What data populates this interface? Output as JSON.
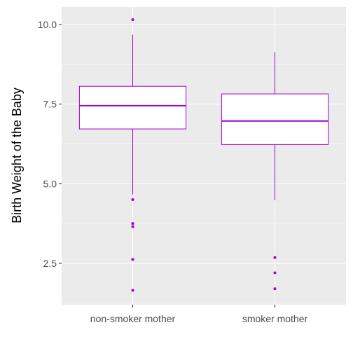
{
  "chart_data": {
    "type": "boxplot",
    "title": "",
    "xlabel": "",
    "ylabel": "Birth Weight of the Baby",
    "ylim": [
      1.2,
      10.55
    ],
    "y_ticks": [
      2.5,
      5.0,
      7.5,
      10.0
    ],
    "y_tick_labels": [
      "2.5",
      "5.0",
      "7.5",
      "10.0"
    ],
    "grid": true,
    "legend": "none",
    "colors": {
      "panel_background": "#EBEBEB",
      "grid": "#FFFFFF",
      "box_outline": "#9F00CF",
      "box_fill": "#FFFFFF",
      "tick_label": "#4D4D4D",
      "tick_mark": "#333333"
    },
    "categories": [
      "non-smoker mother",
      "smoker mother"
    ],
    "boxes": [
      {
        "category": "non-smoker mother",
        "whisker_low": 4.66,
        "q1": 6.72,
        "median": 7.45,
        "q3": 8.06,
        "whisker_high": 9.68,
        "outliers": [
          10.15,
          4.5,
          3.75,
          3.65,
          2.62,
          1.65
        ]
      },
      {
        "category": "smoker mother",
        "whisker_low": 4.48,
        "q1": 6.23,
        "median": 6.97,
        "q3": 7.82,
        "whisker_high": 9.13,
        "outliers": [
          2.68,
          2.2,
          1.7
        ]
      }
    ]
  }
}
